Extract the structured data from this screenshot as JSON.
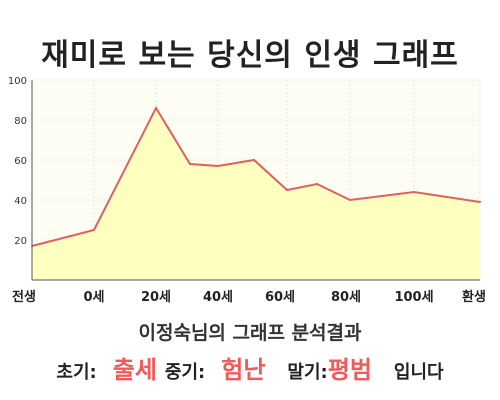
{
  "page": {
    "title": "재미로 보는 당신의 인생 그래프",
    "summary": "이정숙님의 그래프 분석결과",
    "result": {
      "early_label": "초기:",
      "early_value": "출세",
      "middle_label": "중기:",
      "middle_value": "험난",
      "late_label": "말기:",
      "late_value": "평범",
      "ending": "입니다"
    }
  },
  "chart_data": {
    "type": "area",
    "title": "재미로 보는 당신의 인생 그래프",
    "xlabel": "",
    "ylabel": "",
    "ylim": [
      0,
      100
    ],
    "yticks": [
      20,
      40,
      60,
      80,
      100
    ],
    "x_ticks": [
      "전생",
      "0세",
      "20세",
      "40세",
      "60세",
      "80세",
      "100세",
      "환생"
    ],
    "grid": true,
    "colors": {
      "line": "#e06060",
      "fill": "#ffffc0",
      "grid": "#e8e8d8",
      "accent": "#f05a5a"
    },
    "series": [
      {
        "points": [
          {
            "x": "전생",
            "y": 17
          },
          {
            "x": "0세",
            "y": 25
          },
          {
            "x": "20세",
            "y": 86
          },
          {
            "x": "30세",
            "y": 58
          },
          {
            "x": "40세",
            "y": 57
          },
          {
            "x": "50세",
            "y": 60
          },
          {
            "x": "60세",
            "y": 45
          },
          {
            "x": "70세",
            "y": 48
          },
          {
            "x": "80세",
            "y": 40
          },
          {
            "x": "100세",
            "y": 44
          },
          {
            "x": "환생",
            "y": 39
          }
        ]
      }
    ]
  }
}
